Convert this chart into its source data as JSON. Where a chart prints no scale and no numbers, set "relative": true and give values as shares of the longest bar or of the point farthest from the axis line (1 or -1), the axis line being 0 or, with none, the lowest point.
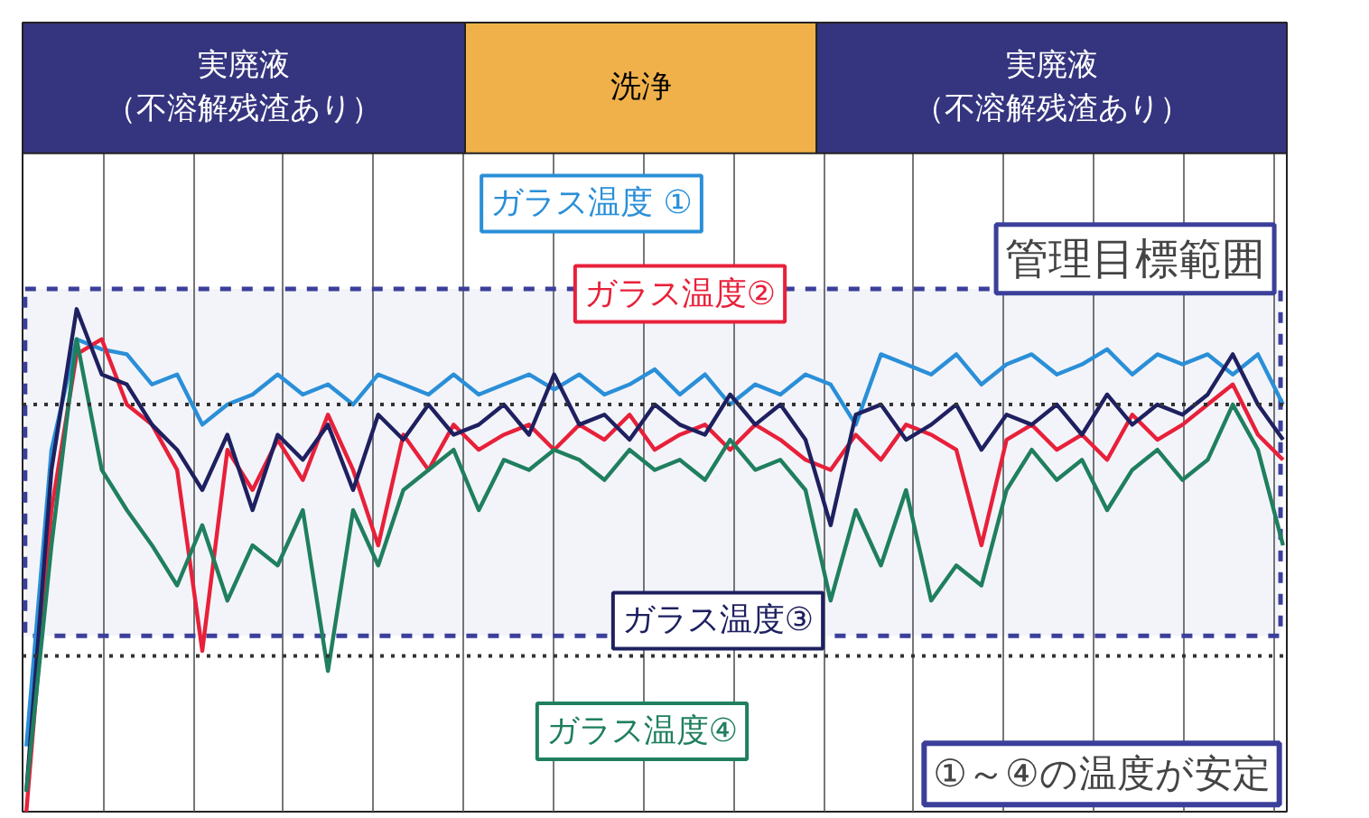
{
  "chart_data": {
    "type": "line",
    "relative": true,
    "legend": false,
    "grid": "x",
    "marker": "none",
    "line_style": "solid",
    "categories": [
      null,
      null,
      null,
      null,
      null,
      null,
      null,
      null,
      null,
      null,
      null,
      null,
      null,
      null,
      null,
      null,
      null,
      null,
      null,
      null,
      null,
      null,
      null,
      null,
      null,
      null,
      null,
      null,
      null,
      null,
      null,
      null,
      null,
      null,
      null,
      null,
      null,
      null,
      null,
      null,
      null,
      null,
      null,
      null,
      null,
      null,
      null,
      null,
      null,
      null,
      null
    ],
    "series": [
      {
        "name": "ガラス温度 ①",
        "color": "#2a8fd8",
        "values": [
          0.13,
          0.72,
          0.94,
          0.92,
          0.91,
          0.85,
          0.87,
          0.77,
          0.81,
          0.83,
          0.87,
          0.83,
          0.85,
          0.81,
          0.87,
          0.85,
          0.83,
          0.87,
          0.83,
          0.85,
          0.87,
          0.84,
          0.87,
          0.83,
          0.85,
          0.88,
          0.83,
          0.87,
          0.81,
          0.85,
          0.83,
          0.87,
          0.85,
          0.77,
          0.91,
          0.89,
          0.87,
          0.91,
          0.85,
          0.89,
          0.91,
          0.87,
          0.89,
          0.92,
          0.87,
          0.91,
          0.89,
          0.91,
          0.87,
          0.91,
          0.81
        ]
      },
      {
        "name": "ガラス温度②",
        "color": "#e8203a",
        "values": [
          0.0,
          0.6,
          0.91,
          0.94,
          0.81,
          0.77,
          0.68,
          0.32,
          0.72,
          0.64,
          0.74,
          0.66,
          0.79,
          0.68,
          0.53,
          0.75,
          0.68,
          0.77,
          0.72,
          0.75,
          0.77,
          0.72,
          0.77,
          0.74,
          0.79,
          0.72,
          0.75,
          0.77,
          0.72,
          0.77,
          0.74,
          0.7,
          0.68,
          0.75,
          0.7,
          0.77,
          0.75,
          0.72,
          0.53,
          0.74,
          0.77,
          0.72,
          0.75,
          0.7,
          0.79,
          0.74,
          0.77,
          0.81,
          0.85,
          0.75,
          0.7
        ]
      },
      {
        "name": "ガラス温度③",
        "color": "#1e2060",
        "values": [
          0.04,
          0.68,
          1.0,
          0.87,
          0.85,
          0.77,
          0.72,
          0.64,
          0.75,
          0.6,
          0.75,
          0.7,
          0.77,
          0.64,
          0.79,
          0.74,
          0.81,
          0.75,
          0.77,
          0.81,
          0.75,
          0.87,
          0.77,
          0.79,
          0.74,
          0.81,
          0.77,
          0.75,
          0.83,
          0.77,
          0.81,
          0.74,
          0.57,
          0.79,
          0.81,
          0.74,
          0.77,
          0.81,
          0.72,
          0.79,
          0.77,
          0.81,
          0.75,
          0.83,
          0.77,
          0.81,
          0.79,
          0.83,
          0.91,
          0.81,
          0.74
        ]
      },
      {
        "name": "ガラス温度④",
        "color": "#1f7f5e",
        "values": [
          0.04,
          0.53,
          0.94,
          0.68,
          0.6,
          0.53,
          0.45,
          0.57,
          0.42,
          0.53,
          0.49,
          0.6,
          0.28,
          0.6,
          0.49,
          0.64,
          0.68,
          0.72,
          0.6,
          0.7,
          0.68,
          0.72,
          0.7,
          0.66,
          0.72,
          0.68,
          0.7,
          0.66,
          0.74,
          0.68,
          0.7,
          0.64,
          0.42,
          0.6,
          0.49,
          0.64,
          0.42,
          0.49,
          0.45,
          0.64,
          0.72,
          0.66,
          0.7,
          0.6,
          0.68,
          0.72,
          0.66,
          0.7,
          0.81,
          0.72,
          0.53
        ]
      }
    ],
    "ref_lines": [
      {
        "axis": "y",
        "value": 0.81,
        "color": "#333333",
        "line_style": "dotted"
      },
      {
        "axis": "y",
        "value": 0.31,
        "color": "#333333",
        "line_style": "dotted"
      }
    ],
    "bands": [
      {
        "axis": "y",
        "from": 0.35,
        "to": 1.04,
        "label": "管理目標範囲",
        "color": "#3b3f9a"
      }
    ],
    "annotations": [
      "実廃液",
      "（不溶解残渣あり）",
      "洗浄",
      "実廃液",
      "（不溶解残渣あり）",
      "①～④の温度が安定"
    ]
  }
}
